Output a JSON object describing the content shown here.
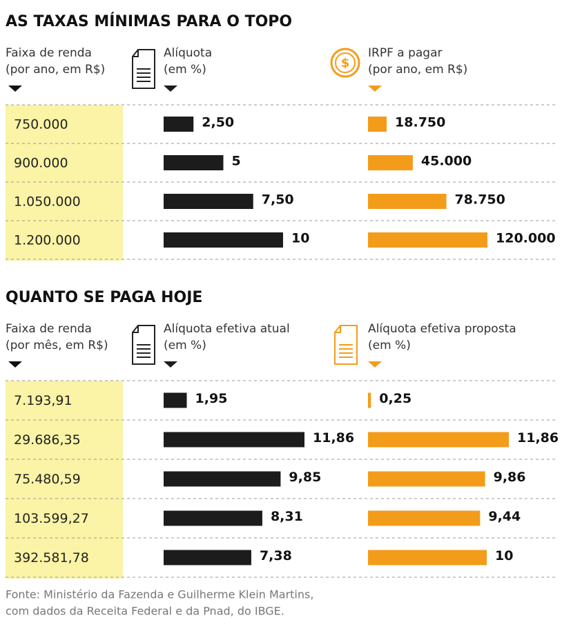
{
  "chart_data": [
    {
      "type": "bar",
      "title": "AS TAXAS MÍNIMAS PARA O TOPO",
      "category_label": "Faixa de renda",
      "category_unit": "(por ano, em R$)",
      "categories": [
        "750.000",
        "900.000",
        "1.050.000",
        "1.200.000"
      ],
      "series": [
        {
          "name": "Alíquota",
          "unit": "(em %)",
          "color": "#1c1c1c",
          "values": [
            2.5,
            5,
            7.5,
            10
          ],
          "value_labels": [
            "2,50",
            "5",
            "7,50",
            "10"
          ]
        },
        {
          "name": "IRPF a pagar",
          "unit": "(por ano, em R$)",
          "color": "#f39c1a",
          "values": [
            18750,
            45000,
            78750,
            120000
          ],
          "value_labels": [
            "18.750",
            "45.000",
            "78.750",
            "120.000"
          ]
        }
      ]
    },
    {
      "type": "bar",
      "title": "QUANTO SE PAGA HOJE",
      "category_label": "Faixa de renda",
      "category_unit": "(por mês, em R$)",
      "categories": [
        "7.193,91",
        "29.686,35",
        "75.480,59",
        "103.599,27",
        "392.581,78"
      ],
      "series": [
        {
          "name": "Alíquota efetiva atual",
          "unit": "(em %)",
          "color": "#1c1c1c",
          "values": [
            1.95,
            11.86,
            9.85,
            8.31,
            7.38
          ],
          "value_labels": [
            "1,95",
            "11,86",
            "9,85",
            "8,31",
            "7,38"
          ]
        },
        {
          "name": "Alíquota efetiva proposta",
          "unit": "(em %)",
          "color": "#f39c1a",
          "values": [
            0.25,
            11.86,
            9.86,
            9.44,
            10
          ],
          "value_labels": [
            "0,25",
            "11,86",
            "9,86",
            "9,44",
            "10"
          ]
        }
      ]
    }
  ],
  "source": [
    "Fonte: Ministério da Fazenda e Guilherme Klein Martins,",
    "com dados da Receita Federal e da Pnad, do IBGE."
  ]
}
